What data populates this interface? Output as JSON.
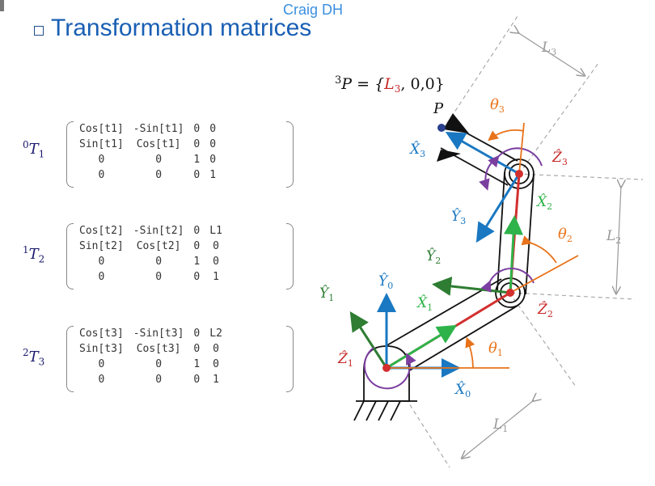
{
  "header": {
    "source": "Craig DH"
  },
  "title": "Transformation matrices",
  "matrices": [
    {
      "label_top": "0",
      "label_bot": "1",
      "rows": [
        [
          "Cos[t1]",
          "-Sin[t1]",
          "0",
          "0"
        ],
        [
          "Sin[t1]",
          "Cos[t1]",
          "0",
          "0"
        ],
        [
          "0",
          "0",
          "1",
          "0"
        ],
        [
          "0",
          "0",
          "0",
          "1"
        ]
      ]
    },
    {
      "label_top": "1",
      "label_bot": "2",
      "rows": [
        [
          "Cos[t2]",
          "-Sin[t2]",
          "0",
          "L1"
        ],
        [
          "Sin[t2]",
          "Cos[t2]",
          "0",
          "0"
        ],
        [
          "0",
          "0",
          "1",
          "0"
        ],
        [
          "0",
          "0",
          "0",
          "1"
        ]
      ]
    },
    {
      "label_top": "2",
      "label_bot": "3",
      "rows": [
        [
          "Cos[t3]",
          "-Sin[t3]",
          "0",
          "L2"
        ],
        [
          "Sin[t3]",
          "Cos[t3]",
          "0",
          "0"
        ],
        [
          "0",
          "0",
          "1",
          "0"
        ],
        [
          "0",
          "0",
          "0",
          "1"
        ]
      ]
    }
  ],
  "diagram": {
    "point_eq_pre": "P = {",
    "point_eq_L": "L",
    "point_eq_post": ", 0,0}",
    "point_sup": "3",
    "point_label": "P",
    "lengths": {
      "L1": "L",
      "L2": "L",
      "L3": "L",
      "sub1": "1",
      "sub2": "2",
      "sub3": "3"
    },
    "angles": {
      "theta": "θ",
      "t1": "1",
      "t2": "2",
      "t3": "3"
    },
    "axes": {
      "X": "X̂",
      "Y": "Ŷ",
      "Z": "Ẑ",
      "i0": "0",
      "i1": "1",
      "i2": "2",
      "i3": "3"
    },
    "colors": {
      "x_axis": "#1a78c2",
      "y_axis": "#2e7d32",
      "z_axis": "#c62828",
      "angle": "#e8731a",
      "length": "#999999",
      "link_red": "#d32f2f",
      "link_green": "#2eb34a",
      "arc": "#7b3fa0"
    }
  }
}
